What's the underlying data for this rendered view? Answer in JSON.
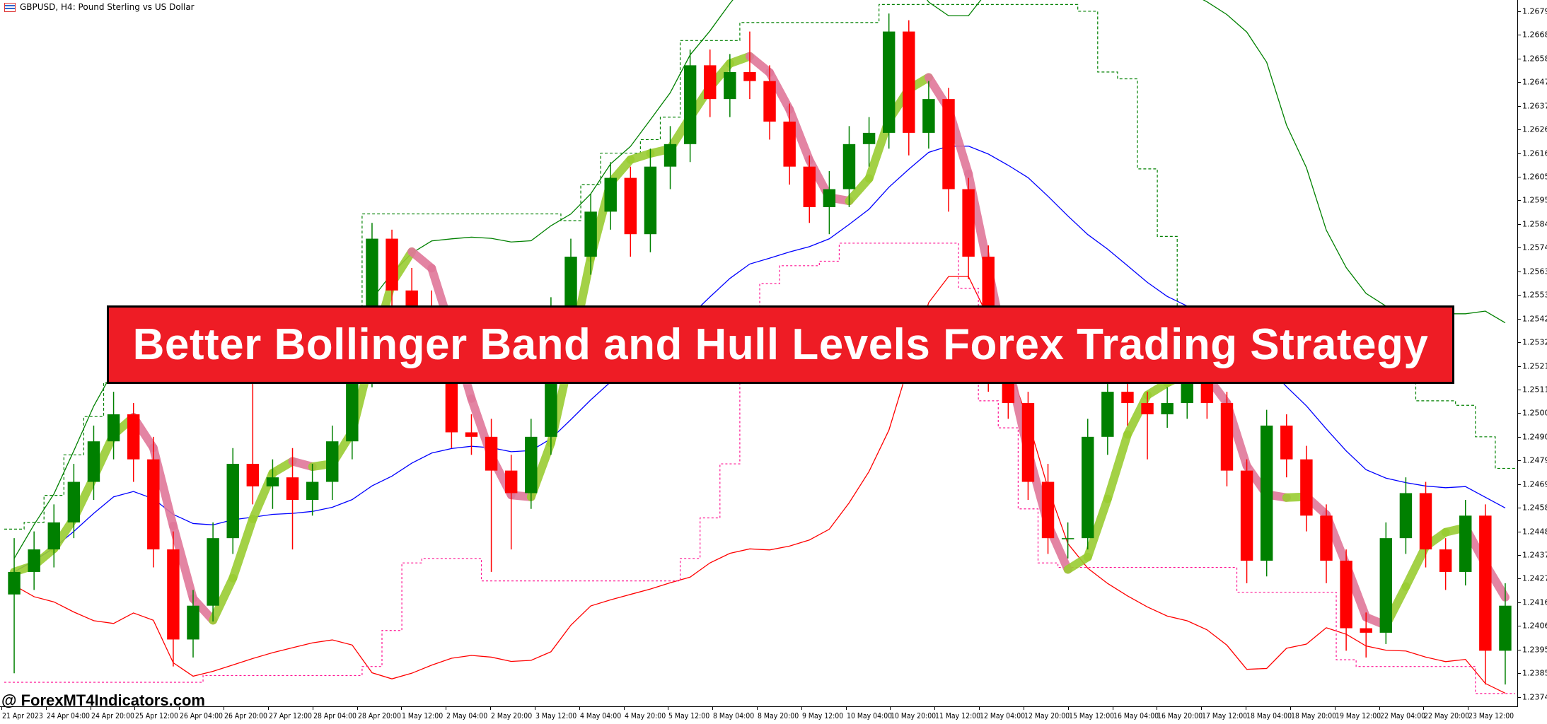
{
  "window": {
    "title": "GBPUSD, H4:  Pound Sterling vs US Dollar",
    "icon": "chart-window-icon"
  },
  "banner": {
    "text": "Better Bollinger Band and Hull Levels Forex Trading Strategy",
    "color": "#ee1c25"
  },
  "watermark": "@ ForexMT4Indicators.com",
  "colors": {
    "bull": "#008000",
    "bear": "#ff0000",
    "bb_upper": "#008000",
    "bb_middle": "#0000ff",
    "bb_lower": "#ff0000",
    "hull_up": "#9acd32",
    "hull_down": "#e0779a",
    "level_resist": "#008000",
    "level_support": "#ff1493"
  },
  "chart_data": {
    "type": "candlestick",
    "symbol": "GBPUSD",
    "timeframe": "H4",
    "ylim": [
      1.237,
      1.2684
    ],
    "y_ticks": [
      "1.26790",
      "1.26685",
      "1.26580",
      "1.26475",
      "1.26370",
      "1.26265",
      "1.26160",
      "1.26055",
      "1.25950",
      "1.25845",
      "1.25740",
      "1.25635",
      "1.25530",
      "1.25425",
      "1.25320",
      "1.25215",
      "1.25110",
      "1.25005",
      "1.24900",
      "1.24795",
      "1.24690",
      "1.24585",
      "1.24480",
      "1.24375",
      "1.24270",
      "1.24165",
      "1.24060",
      "1.23955",
      "1.23850",
      "1.23745"
    ],
    "x_ticks": [
      "21 Apr 2023",
      "24 Apr 04:00",
      "24 Apr 20:00",
      "25 Apr 12:00",
      "26 Apr 04:00",
      "26 Apr 20:00",
      "27 Apr 12:00",
      "28 Apr 04:00",
      "28 Apr 20:00",
      "1 May 12:00",
      "2 May 04:00",
      "2 May 20:00",
      "3 May 12:00",
      "4 May 04:00",
      "4 May 20:00",
      "5 May 12:00",
      "8 May 04:00",
      "8 May 20:00",
      "9 May 12:00",
      "10 May 04:00",
      "10 May 20:00",
      "11 May 12:00",
      "12 May 04:00",
      "12 May 20:00",
      "15 May 12:00",
      "16 May 04:00",
      "16 May 20:00",
      "17 May 12:00",
      "18 May 04:00",
      "18 May 20:00",
      "19 May 12:00",
      "22 May 04:00",
      "22 May 20:00",
      "23 May 12:00"
    ],
    "ohlc": [
      [
        1.242,
        1.2445,
        1.2385,
        1.243
      ],
      [
        1.243,
        1.2448,
        1.2422,
        1.244
      ],
      [
        1.244,
        1.246,
        1.2432,
        1.2452
      ],
      [
        1.2452,
        1.2478,
        1.2445,
        1.247
      ],
      [
        1.247,
        1.2495,
        1.2462,
        1.2488
      ],
      [
        1.2488,
        1.251,
        1.248,
        1.25
      ],
      [
        1.25,
        1.2505,
        1.247,
        1.248
      ],
      [
        1.248,
        1.249,
        1.2432,
        1.244
      ],
      [
        1.244,
        1.2448,
        1.2388,
        1.24
      ],
      [
        1.24,
        1.2422,
        1.2392,
        1.2415
      ],
      [
        1.2415,
        1.2452,
        1.2408,
        1.2445
      ],
      [
        1.2445,
        1.2485,
        1.2438,
        1.2478
      ],
      [
        1.2478,
        1.252,
        1.246,
        1.2468
      ],
      [
        1.2468,
        1.248,
        1.2458,
        1.2472
      ],
      [
        1.2472,
        1.2485,
        1.244,
        1.2462
      ],
      [
        1.2462,
        1.2478,
        1.2455,
        1.247
      ],
      [
        1.247,
        1.2495,
        1.2462,
        1.2488
      ],
      [
        1.2488,
        1.2528,
        1.248,
        1.252
      ],
      [
        1.252,
        1.2585,
        1.2512,
        1.2578
      ],
      [
        1.2578,
        1.2582,
        1.2548,
        1.2555
      ],
      [
        1.2555,
        1.2565,
        1.2538,
        1.2545
      ],
      [
        1.2545,
        1.2555,
        1.252,
        1.253
      ],
      [
        1.253,
        1.254,
        1.2485,
        1.2492
      ],
      [
        1.2492,
        1.25,
        1.2482,
        1.249
      ],
      [
        1.249,
        1.2498,
        1.243,
        1.2475
      ],
      [
        1.2475,
        1.2482,
        1.244,
        1.2465
      ],
      [
        1.2465,
        1.2498,
        1.2458,
        1.249
      ],
      [
        1.249,
        1.2552,
        1.2482,
        1.2545
      ],
      [
        1.2545,
        1.2578,
        1.2538,
        1.257
      ],
      [
        1.257,
        1.2598,
        1.2562,
        1.259
      ],
      [
        1.259,
        1.2612,
        1.2582,
        1.2605
      ],
      [
        1.2605,
        1.261,
        1.257,
        1.258
      ],
      [
        1.258,
        1.2618,
        1.2572,
        1.261
      ],
      [
        1.261,
        1.2628,
        1.26,
        1.262
      ],
      [
        1.262,
        1.2662,
        1.2612,
        1.2655
      ],
      [
        1.2655,
        1.2662,
        1.2632,
        1.264
      ],
      [
        1.264,
        1.266,
        1.2632,
        1.2652
      ],
      [
        1.2652,
        1.267,
        1.264,
        1.2648
      ],
      [
        1.2648,
        1.2655,
        1.2622,
        1.263
      ],
      [
        1.263,
        1.2638,
        1.2602,
        1.261
      ],
      [
        1.261,
        1.2615,
        1.2585,
        1.2592
      ],
      [
        1.2592,
        1.2608,
        1.258,
        1.26
      ],
      [
        1.26,
        1.2628,
        1.2592,
        1.262
      ],
      [
        1.262,
        1.2632,
        1.261,
        1.2625
      ],
      [
        1.2625,
        1.2678,
        1.2618,
        1.267
      ],
      [
        1.267,
        1.2675,
        1.2615,
        1.2625
      ],
      [
        1.2625,
        1.2648,
        1.2618,
        1.264
      ],
      [
        1.264,
        1.2645,
        1.259,
        1.26
      ],
      [
        1.26,
        1.2605,
        1.256,
        1.257
      ],
      [
        1.257,
        1.2575,
        1.251,
        1.252
      ],
      [
        1.252,
        1.2528,
        1.2498,
        1.2505
      ],
      [
        1.2505,
        1.251,
        1.2462,
        1.247
      ],
      [
        1.247,
        1.2478,
        1.2438,
        1.2445
      ],
      [
        1.2445,
        1.2452,
        1.2436,
        1.2445
      ],
      [
        1.2445,
        1.2498,
        1.244,
        1.249
      ],
      [
        1.249,
        1.2518,
        1.2482,
        1.251
      ],
      [
        1.251,
        1.2515,
        1.2495,
        1.2505
      ],
      [
        1.2505,
        1.251,
        1.248,
        1.25
      ],
      [
        1.25,
        1.2512,
        1.2494,
        1.2505
      ],
      [
        1.2505,
        1.2532,
        1.2498,
        1.2525
      ],
      [
        1.2525,
        1.253,
        1.2498,
        1.2505
      ],
      [
        1.2505,
        1.251,
        1.2468,
        1.2475
      ],
      [
        1.2475,
        1.248,
        1.2425,
        1.2435
      ],
      [
        1.2435,
        1.2502,
        1.2428,
        1.2495
      ],
      [
        1.2495,
        1.25,
        1.2472,
        1.248
      ],
      [
        1.248,
        1.2486,
        1.2448,
        1.2455
      ],
      [
        1.2455,
        1.246,
        1.2425,
        1.2435
      ],
      [
        1.2435,
        1.244,
        1.2395,
        1.2405
      ],
      [
        1.2405,
        1.2412,
        1.2392,
        1.2403
      ],
      [
        1.2403,
        1.2452,
        1.2398,
        1.2445
      ],
      [
        1.2445,
        1.2472,
        1.2438,
        1.2465
      ],
      [
        1.2465,
        1.247,
        1.2432,
        1.244
      ],
      [
        1.244,
        1.2445,
        1.2422,
        1.243
      ],
      [
        1.243,
        1.2462,
        1.2424,
        1.2455
      ],
      [
        1.2455,
        1.246,
        1.238,
        1.2395
      ],
      [
        1.2395,
        1.2425,
        1.238,
        1.2415
      ]
    ],
    "indicators": [
      "Bollinger Bands (upper, middle, lower)",
      "Hull band",
      "Hull levels (dashed)"
    ]
  }
}
